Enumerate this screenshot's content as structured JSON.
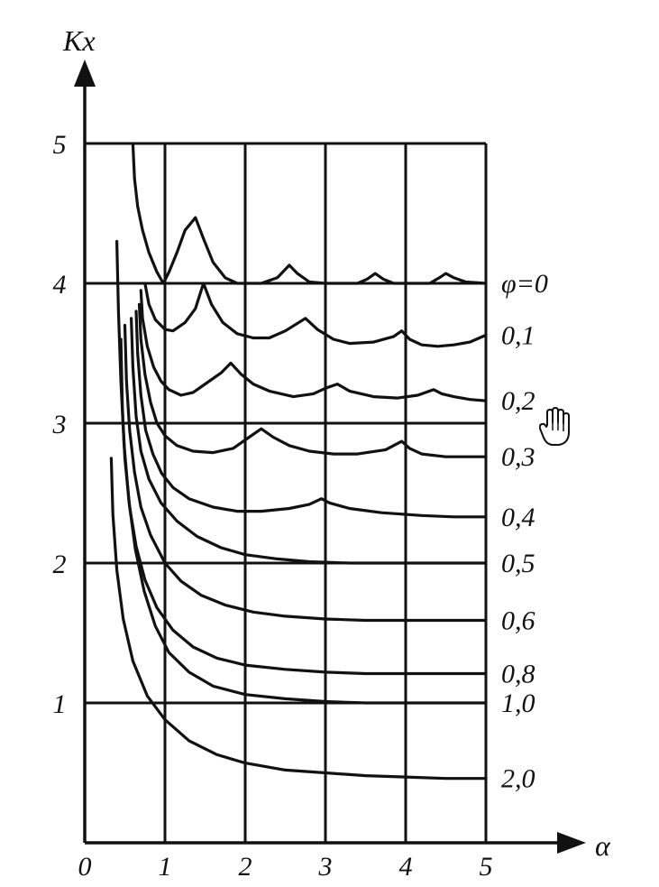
{
  "chart_data": {
    "type": "line",
    "title": "",
    "xlabel": "α",
    "ylabel": "Kx",
    "xlim": [
      0,
      5
    ],
    "ylim": [
      0,
      5
    ],
    "x_ticks": [
      "0",
      "1",
      "2",
      "3",
      "4",
      "5"
    ],
    "y_ticks": [
      "1",
      "2",
      "3",
      "4",
      "5"
    ],
    "grid": true,
    "series": [
      {
        "name": "φ=0",
        "points": [
          [
            0.6,
            5.0
          ],
          [
            0.62,
            4.75
          ],
          [
            0.66,
            4.55
          ],
          [
            0.72,
            4.38
          ],
          [
            0.8,
            4.22
          ],
          [
            0.9,
            4.08
          ],
          [
            0.98,
            4.0
          ],
          [
            1.05,
            4.08
          ],
          [
            1.15,
            4.22
          ],
          [
            1.25,
            4.38
          ],
          [
            1.38,
            4.47
          ],
          [
            1.48,
            4.32
          ],
          [
            1.6,
            4.15
          ],
          [
            1.75,
            4.04
          ],
          [
            1.9,
            4.0
          ],
          [
            2.2,
            4.0
          ],
          [
            2.4,
            4.04
          ],
          [
            2.55,
            4.13
          ],
          [
            2.65,
            4.07
          ],
          [
            2.8,
            4.01
          ],
          [
            3.0,
            4.0
          ],
          [
            3.4,
            4.0
          ],
          [
            3.52,
            4.03
          ],
          [
            3.62,
            4.07
          ],
          [
            3.72,
            4.03
          ],
          [
            3.85,
            4.0
          ],
          [
            4.3,
            4.0
          ],
          [
            4.42,
            4.04
          ],
          [
            4.5,
            4.07
          ],
          [
            4.6,
            4.04
          ],
          [
            4.75,
            4.01
          ],
          [
            5.0,
            4.0
          ]
        ]
      },
      {
        "name": "0,1",
        "points": [
          [
            0.75,
            4.0
          ],
          [
            0.8,
            3.85
          ],
          [
            0.88,
            3.74
          ],
          [
            1.0,
            3.67
          ],
          [
            1.1,
            3.66
          ],
          [
            1.25,
            3.72
          ],
          [
            1.38,
            3.82
          ],
          [
            1.48,
            4.0
          ],
          [
            1.58,
            3.85
          ],
          [
            1.72,
            3.72
          ],
          [
            1.9,
            3.64
          ],
          [
            2.1,
            3.61
          ],
          [
            2.3,
            3.61
          ],
          [
            2.5,
            3.66
          ],
          [
            2.75,
            3.75
          ],
          [
            2.9,
            3.67
          ],
          [
            3.1,
            3.6
          ],
          [
            3.3,
            3.57
          ],
          [
            3.6,
            3.58
          ],
          [
            3.85,
            3.62
          ],
          [
            3.95,
            3.66
          ],
          [
            4.05,
            3.6
          ],
          [
            4.2,
            3.56
          ],
          [
            4.4,
            3.55
          ],
          [
            4.6,
            3.56
          ],
          [
            4.8,
            3.58
          ],
          [
            5.0,
            3.63
          ]
        ]
      },
      {
        "name": "0,2",
        "points": [
          [
            0.7,
            3.95
          ],
          [
            0.72,
            3.75
          ],
          [
            0.78,
            3.55
          ],
          [
            0.86,
            3.4
          ],
          [
            0.95,
            3.3
          ],
          [
            1.05,
            3.24
          ],
          [
            1.2,
            3.2
          ],
          [
            1.35,
            3.22
          ],
          [
            1.55,
            3.3
          ],
          [
            1.7,
            3.36
          ],
          [
            1.82,
            3.43
          ],
          [
            1.95,
            3.35
          ],
          [
            2.1,
            3.28
          ],
          [
            2.3,
            3.23
          ],
          [
            2.6,
            3.19
          ],
          [
            2.85,
            3.21
          ],
          [
            3.0,
            3.25
          ],
          [
            3.15,
            3.28
          ],
          [
            3.3,
            3.23
          ],
          [
            3.6,
            3.19
          ],
          [
            3.9,
            3.18
          ],
          [
            4.15,
            3.2
          ],
          [
            4.35,
            3.24
          ],
          [
            4.45,
            3.21
          ],
          [
            4.6,
            3.19
          ],
          [
            4.8,
            3.17
          ],
          [
            5.0,
            3.16
          ]
        ]
      },
      {
        "name": "0,3",
        "points": [
          [
            0.68,
            3.85
          ],
          [
            0.7,
            3.6
          ],
          [
            0.75,
            3.35
          ],
          [
            0.82,
            3.15
          ],
          [
            0.9,
            3.0
          ],
          [
            1.0,
            2.91
          ],
          [
            1.15,
            2.84
          ],
          [
            1.35,
            2.8
          ],
          [
            1.6,
            2.79
          ],
          [
            1.85,
            2.82
          ],
          [
            2.05,
            2.9
          ],
          [
            2.2,
            2.96
          ],
          [
            2.35,
            2.9
          ],
          [
            2.55,
            2.84
          ],
          [
            2.8,
            2.8
          ],
          [
            3.1,
            2.78
          ],
          [
            3.4,
            2.78
          ],
          [
            3.75,
            2.81
          ],
          [
            3.95,
            2.87
          ],
          [
            4.05,
            2.82
          ],
          [
            4.2,
            2.78
          ],
          [
            4.5,
            2.76
          ],
          [
            4.8,
            2.76
          ],
          [
            5.0,
            2.76
          ]
        ]
      },
      {
        "name": "0,4",
        "points": [
          [
            0.64,
            3.8
          ],
          [
            0.66,
            3.5
          ],
          [
            0.7,
            3.2
          ],
          [
            0.76,
            2.95
          ],
          [
            0.85,
            2.78
          ],
          [
            0.96,
            2.64
          ],
          [
            1.1,
            2.54
          ],
          [
            1.3,
            2.46
          ],
          [
            1.6,
            2.4
          ],
          [
            1.9,
            2.37
          ],
          [
            2.2,
            2.37
          ],
          [
            2.55,
            2.39
          ],
          [
            2.8,
            2.42
          ],
          [
            2.95,
            2.46
          ],
          [
            3.05,
            2.43
          ],
          [
            3.3,
            2.39
          ],
          [
            3.7,
            2.36
          ],
          [
            4.2,
            2.34
          ],
          [
            4.6,
            2.33
          ],
          [
            5.0,
            2.33
          ]
        ]
      },
      {
        "name": "0,5",
        "points": [
          [
            0.58,
            3.75
          ],
          [
            0.6,
            3.4
          ],
          [
            0.64,
            3.05
          ],
          [
            0.7,
            2.8
          ],
          [
            0.8,
            2.6
          ],
          [
            0.95,
            2.43
          ],
          [
            1.15,
            2.3
          ],
          [
            1.4,
            2.19
          ],
          [
            1.7,
            2.11
          ],
          [
            2.0,
            2.06
          ],
          [
            2.4,
            2.03
          ],
          [
            2.8,
            2.01
          ],
          [
            3.3,
            2.0
          ],
          [
            3.8,
            2.0
          ],
          [
            4.3,
            2.0
          ],
          [
            5.0,
            2.0
          ]
        ]
      },
      {
        "name": "0,6",
        "points": [
          [
            0.5,
            3.7
          ],
          [
            0.52,
            3.3
          ],
          [
            0.56,
            2.95
          ],
          [
            0.62,
            2.65
          ],
          [
            0.7,
            2.4
          ],
          [
            0.82,
            2.2
          ],
          [
            1.0,
            2.0
          ],
          [
            1.2,
            1.87
          ],
          [
            1.45,
            1.77
          ],
          [
            1.75,
            1.7
          ],
          [
            2.1,
            1.65
          ],
          [
            2.5,
            1.62
          ],
          [
            3.0,
            1.6
          ],
          [
            3.5,
            1.59
          ],
          [
            4.0,
            1.59
          ],
          [
            4.5,
            1.59
          ],
          [
            5.0,
            1.59
          ]
        ]
      },
      {
        "name": "0,8",
        "points": [
          [
            0.45,
            3.6
          ],
          [
            0.47,
            3.1
          ],
          [
            0.5,
            2.75
          ],
          [
            0.56,
            2.4
          ],
          [
            0.64,
            2.12
          ],
          [
            0.75,
            1.88
          ],
          [
            0.9,
            1.68
          ],
          [
            1.1,
            1.52
          ],
          [
            1.35,
            1.4
          ],
          [
            1.65,
            1.32
          ],
          [
            2.0,
            1.27
          ],
          [
            2.5,
            1.24
          ],
          [
            3.0,
            1.22
          ],
          [
            3.5,
            1.21
          ],
          [
            4.0,
            1.21
          ],
          [
            5.0,
            1.21
          ]
        ]
      },
      {
        "name": "1,0",
        "points": [
          [
            0.4,
            4.3
          ],
          [
            0.42,
            3.8
          ],
          [
            0.45,
            3.3
          ],
          [
            0.49,
            2.85
          ],
          [
            0.55,
            2.45
          ],
          [
            0.63,
            2.1
          ],
          [
            0.74,
            1.8
          ],
          [
            0.88,
            1.55
          ],
          [
            1.05,
            1.36
          ],
          [
            1.3,
            1.22
          ],
          [
            1.6,
            1.12
          ],
          [
            2.0,
            1.06
          ],
          [
            2.5,
            1.03
          ],
          [
            3.0,
            1.01
          ],
          [
            3.5,
            1.0
          ],
          [
            4.0,
            1.0
          ],
          [
            5.0,
            1.0
          ]
        ]
      },
      {
        "name": "2,0",
        "points": [
          [
            0.33,
            2.75
          ],
          [
            0.35,
            2.35
          ],
          [
            0.4,
            1.95
          ],
          [
            0.48,
            1.6
          ],
          [
            0.6,
            1.3
          ],
          [
            0.78,
            1.05
          ],
          [
            1.0,
            0.88
          ],
          [
            1.3,
            0.73
          ],
          [
            1.65,
            0.63
          ],
          [
            2.0,
            0.57
          ],
          [
            2.5,
            0.52
          ],
          [
            3.0,
            0.5
          ],
          [
            3.5,
            0.48
          ],
          [
            4.0,
            0.47
          ],
          [
            4.5,
            0.46
          ],
          [
            5.0,
            0.46
          ]
        ]
      }
    ]
  }
}
